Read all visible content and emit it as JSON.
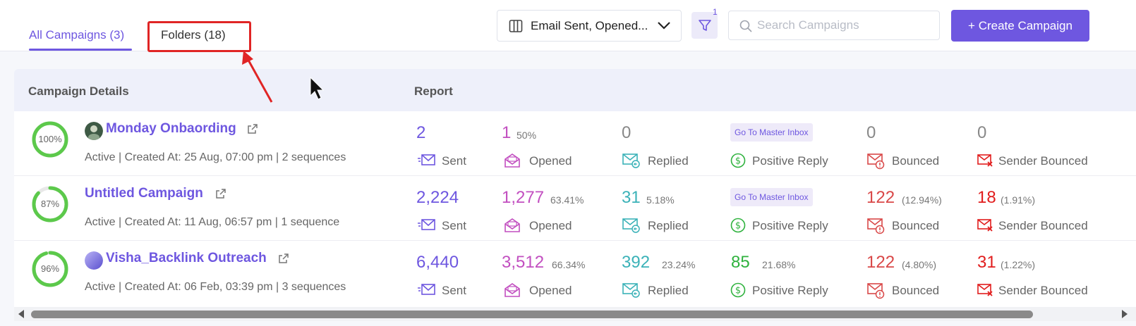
{
  "tabs": [
    {
      "label": "All Campaigns (3)",
      "active": true
    },
    {
      "label": "Folders (18)",
      "active": false
    }
  ],
  "columns_dropdown": {
    "label": "Email Sent, Opened...",
    "icon": "columns-icon"
  },
  "filter": {
    "count": "1",
    "icon": "filter-icon"
  },
  "search": {
    "placeholder": "Search Campaigns",
    "value": ""
  },
  "create_button": {
    "label": "+ Create Campaign"
  },
  "table_headers": {
    "details": "Campaign Details",
    "report": "Report"
  },
  "colors": {
    "accent": "#6e57e0",
    "sent": "#6e57e0",
    "opened": "#c24fc0",
    "replied": "#3bb2b8",
    "positive": "#2fb23e",
    "bounced": "#d94848",
    "sender_bounced": "#e11d1d",
    "ring": "#5cc94b"
  },
  "labels": {
    "sent": "Sent",
    "opened": "Opened",
    "replied": "Replied",
    "positive": "Positive Reply",
    "bounced": "Bounced",
    "sender_bounced": "Sender Bounced",
    "master_inbox": "Go To Master Inbox"
  },
  "campaigns": [
    {
      "progress_pct": 100,
      "progress_label": "100%",
      "name": "Monday Onbaording",
      "meta": "Active | Created At: 25 Aug, 07:00 pm | 2 sequences",
      "sent": "2",
      "opened": "1",
      "opened_pct": "50%",
      "replied": "0",
      "replied_pct": "",
      "positive": "",
      "positive_pct": "",
      "bounced": "0",
      "bounced_pct": "",
      "sender_bounced": "0",
      "sender_bounced_pct": ""
    },
    {
      "progress_pct": 87,
      "progress_label": "87%",
      "name": "Untitled Campaign",
      "meta": "Active | Created At: 11 Aug, 06:57 pm | 1 sequence",
      "sent": "2,224",
      "opened": "1,277",
      "opened_pct": "63.41%",
      "replied": "31",
      "replied_pct": "5.18%",
      "positive": "",
      "positive_pct": "",
      "bounced": "122",
      "bounced_pct": "(12.94%)",
      "sender_bounced": "18",
      "sender_bounced_pct": "(1.91%)"
    },
    {
      "progress_pct": 96,
      "progress_label": "96%",
      "name": "Visha_Backlink Outreach",
      "meta": "Active | Created At: 06 Feb, 03:39 pm | 3 sequences",
      "sent": "6,440",
      "opened": "3,512",
      "opened_pct": "66.34%",
      "replied": "392",
      "replied_pct": "23.24%",
      "positive": "85",
      "positive_pct": "21.68%",
      "bounced": "122",
      "bounced_pct": "(4.80%)",
      "sender_bounced": "31",
      "sender_bounced_pct": "(1.22%)"
    }
  ]
}
